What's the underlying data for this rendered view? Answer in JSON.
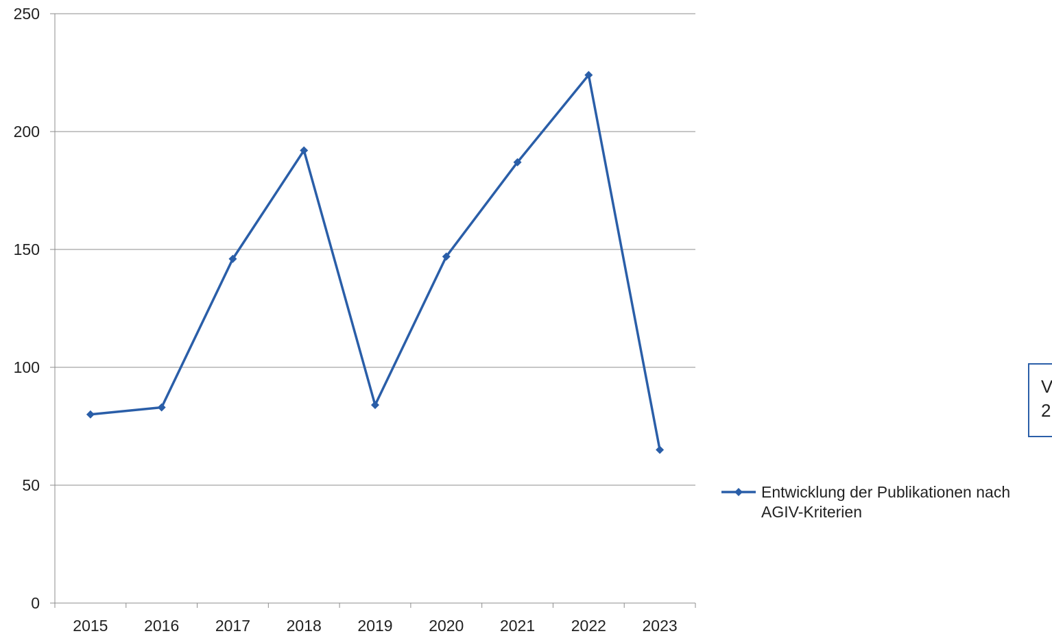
{
  "chart_data": {
    "type": "line",
    "categories": [
      "2015",
      "2016",
      "2017",
      "2018",
      "2019",
      "2020",
      "2021",
      "2022",
      "2023"
    ],
    "series": [
      {
        "name": "Entwicklung der Publikationen nach AGIV-Kriterien",
        "values": [
          80,
          83,
          146,
          192,
          84,
          147,
          187,
          224,
          65
        ]
      }
    ],
    "y_ticks": [
      0,
      50,
      100,
      150,
      200,
      250
    ],
    "ylim": [
      0,
      250
    ],
    "grid": true,
    "legend_position": "right",
    "legend_lines": [
      "Entwicklung der Publikationen nach",
      "AGIV-Kriterien"
    ],
    "line_color": "#2a5ea8",
    "gridline_color": "#8c8c8c",
    "axis_color": "#8c8c8c",
    "marker": "diamond-icon",
    "partial_box_text": [
      "V",
      "2"
    ],
    "partial_box_border_color": "#2a5ea8"
  }
}
